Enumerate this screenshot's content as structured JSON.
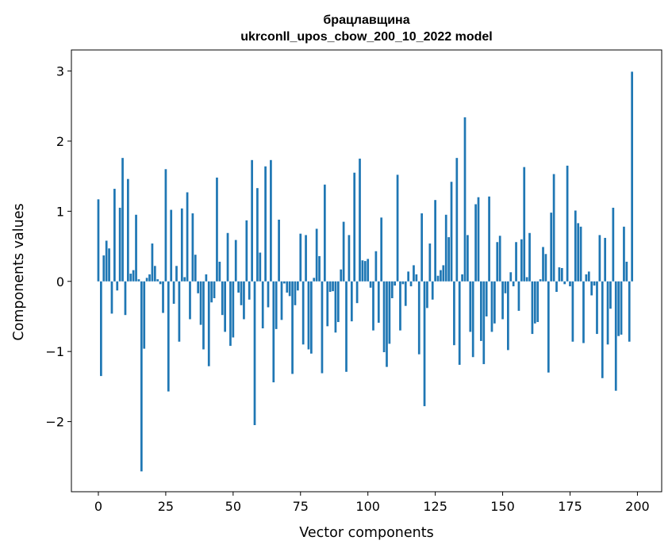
{
  "chart_data": {
    "type": "bar",
    "title_line1": "брацлавщина",
    "title_line2": "ukrconll_upos_cbow_200_10_2022 model",
    "xlabel": "Vector components",
    "ylabel": "Components values",
    "xlim": [
      -10,
      209
    ],
    "ylim": [
      -3.0,
      3.3
    ],
    "xticks": [
      0,
      25,
      50,
      75,
      100,
      125,
      150,
      175,
      200
    ],
    "yticks": [
      -2,
      -1,
      0,
      1,
      2,
      3
    ],
    "ytick_labels": [
      "−2",
      "−1",
      "0",
      "1",
      "2",
      "3"
    ],
    "bar_color": "#1f77b4",
    "grid": false,
    "values": [
      1.17,
      -1.35,
      0.37,
      0.58,
      0.47,
      -0.46,
      1.32,
      -0.13,
      1.05,
      1.76,
      -0.48,
      1.46,
      0.11,
      0.16,
      0.95,
      0.03,
      -2.71,
      -0.96,
      0.05,
      0.1,
      0.54,
      0.22,
      0.03,
      -0.04,
      -0.45,
      1.6,
      -1.57,
      1.02,
      -0.32,
      0.22,
      -0.86,
      1.04,
      0.06,
      1.27,
      -0.54,
      0.97,
      0.38,
      -0.17,
      -0.62,
      -0.97,
      0.1,
      -1.21,
      -0.3,
      -0.24,
      1.48,
      0.28,
      -0.48,
      -0.72,
      0.69,
      -0.92,
      -0.8,
      0.59,
      -0.16,
      -0.34,
      -0.54,
      0.87,
      -0.26,
      1.73,
      -2.05,
      1.33,
      0.41,
      -0.67,
      1.64,
      -0.37,
      1.73,
      -1.44,
      -0.68,
      0.88,
      -0.55,
      -0.03,
      -0.16,
      -0.21,
      -1.32,
      -0.34,
      -0.13,
      0.68,
      -0.9,
      0.66,
      -0.97,
      -1.03,
      0.05,
      0.75,
      0.36,
      -1.31,
      1.38,
      -0.64,
      -0.15,
      -0.14,
      -0.73,
      -0.58,
      0.17,
      0.85,
      -1.29,
      0.66,
      -0.57,
      1.55,
      -0.31,
      1.75,
      0.3,
      0.29,
      0.32,
      -0.09,
      -0.7,
      0.43,
      -0.59,
      0.91,
      -1.01,
      -1.22,
      -0.89,
      -0.24,
      -0.06,
      1.52,
      -0.7,
      -0.04,
      -0.35,
      0.14,
      -0.07,
      0.23,
      0.1,
      -1.04,
      0.97,
      -1.78,
      -0.38,
      0.54,
      -0.26,
      1.16,
      0.08,
      0.16,
      0.23,
      0.95,
      0.63,
      1.42,
      -0.91,
      1.76,
      -1.19,
      0.1,
      2.34,
      0.66,
      -0.72,
      -1.08,
      1.1,
      1.2,
      -0.85,
      -1.18,
      -0.5,
      1.21,
      -0.72,
      -0.6,
      0.56,
      0.65,
      -0.54,
      -0.17,
      -0.98,
      0.13,
      -0.07,
      0.56,
      -0.42,
      0.6,
      1.63,
      0.06,
      0.69,
      -0.75,
      -0.6,
      -0.58,
      0.03,
      0.49,
      0.39,
      -1.3,
      0.98,
      1.53,
      -0.15,
      0.2,
      0.19,
      -0.04,
      1.65,
      -0.07,
      -0.86,
      1.01,
      0.83,
      0.78,
      -0.88,
      0.1,
      0.14,
      -0.2,
      -0.06,
      -0.75,
      0.66,
      -1.38,
      0.62,
      -0.9,
      -0.39,
      1.05,
      -1.56,
      -0.78,
      -0.76,
      0.78,
      0.28,
      -0.86,
      2.99
    ]
  }
}
